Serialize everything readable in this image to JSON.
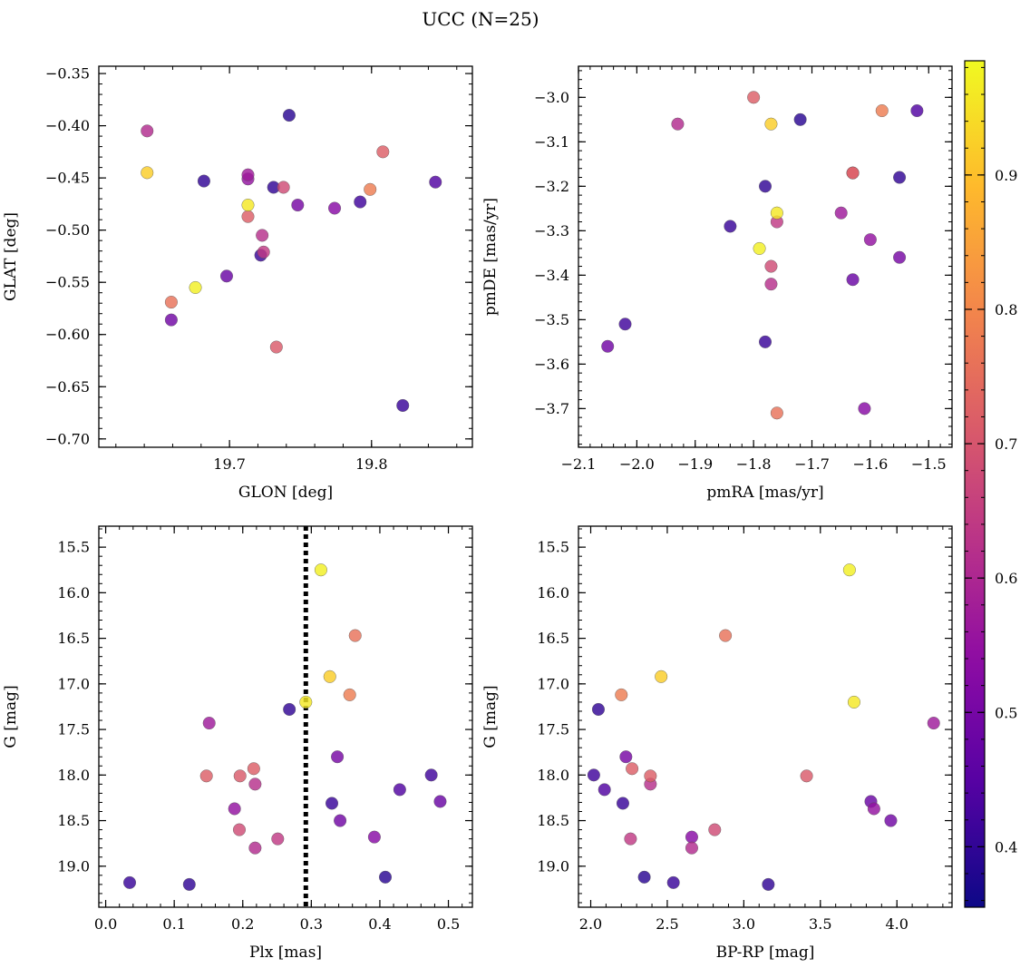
{
  "chart_data": {
    "type": "scatter",
    "title": "UCC (N=25)",
    "colorbar": {
      "colormap": "plasma",
      "range": [
        0.355,
        0.985
      ],
      "ticks": [
        0.4,
        0.5,
        0.6,
        0.7,
        0.8,
        0.9
      ],
      "tick_labels": [
        "0.4",
        "0.5",
        "0.6",
        "0.7",
        "0.8",
        "0.9"
      ]
    },
    "vline": {
      "panel": 2,
      "x": 0.292,
      "style": "dotted"
    },
    "panels": [
      {
        "name": "glon-glat",
        "xlabel": "GLON [deg]",
        "ylabel": "GLAT [deg]",
        "xlim": [
          19.608,
          19.871
        ],
        "ylim": [
          -0.708,
          -0.343
        ],
        "x_ticks": [
          19.7,
          19.8
        ],
        "x_tick_labels": [
          "19.7",
          "19.8"
        ],
        "y_ticks": [
          -0.35,
          -0.4,
          -0.45,
          -0.5,
          -0.55,
          -0.6,
          -0.65,
          -0.7
        ],
        "y_tick_labels": [
          "−0.35",
          "−0.40",
          "−0.45",
          "−0.50",
          "−0.55",
          "−0.60",
          "−0.65",
          "−0.70"
        ],
        "inverted_y": false
      },
      {
        "name": "pm",
        "xlabel": "pmRA [mas/yr]",
        "ylabel": "pmDE [mas/yr]",
        "xlim": [
          -2.1,
          -1.46
        ],
        "ylim": [
          -3.787,
          -2.93
        ],
        "x_ticks": [
          -2.1,
          -2.0,
          -1.9,
          -1.8,
          -1.7,
          -1.6,
          -1.5
        ],
        "x_tick_labels": [
          "−2.1",
          "−2.0",
          "−1.9",
          "−1.8",
          "−1.7",
          "−1.6",
          "−1.5"
        ],
        "y_ticks": [
          -3.0,
          -3.1,
          -3.2,
          -3.3,
          -3.4,
          -3.5,
          -3.6,
          -3.7
        ],
        "y_tick_labels": [
          "−3.0",
          "−3.1",
          "−3.2",
          "−3.3",
          "−3.4",
          "−3.5",
          "−3.6",
          "−3.7"
        ],
        "inverted_y": false
      },
      {
        "name": "plx-g",
        "xlabel": "Plx [mas]",
        "ylabel": "G [mag]",
        "xlim": [
          -0.01,
          0.535
        ],
        "ylim": [
          19.45,
          15.27
        ],
        "x_ticks": [
          0.0,
          0.1,
          0.2,
          0.3,
          0.4,
          0.5
        ],
        "x_tick_labels": [
          "0.0",
          "0.1",
          "0.2",
          "0.3",
          "0.4",
          "0.5"
        ],
        "y_ticks": [
          15.5,
          16.0,
          16.5,
          17.0,
          17.5,
          18.0,
          18.5,
          19.0
        ],
        "y_tick_labels": [
          "15.5",
          "16.0",
          "16.5",
          "17.0",
          "17.5",
          "18.0",
          "18.5",
          "19.0"
        ],
        "inverted_y": true
      },
      {
        "name": "color-mag",
        "xlabel": "BP-RP [mag]",
        "ylabel": "G [mag]",
        "xlim": [
          1.92,
          4.36
        ],
        "ylim": [
          19.45,
          15.27
        ],
        "x_ticks": [
          2.0,
          2.5,
          3.0,
          3.5,
          4.0
        ],
        "x_tick_labels": [
          "2.0",
          "2.5",
          "3.0",
          "3.5",
          "4.0"
        ],
        "y_ticks": [
          15.5,
          16.0,
          16.5,
          17.0,
          17.5,
          18.0,
          18.5,
          19.0
        ],
        "y_tick_labels": [
          "15.5",
          "16.0",
          "16.5",
          "17.0",
          "17.5",
          "18.0",
          "18.5",
          "19.0"
        ],
        "inverted_y": true
      }
    ],
    "stars": [
      {
        "glon": 19.742,
        "glat": -0.39,
        "pmra": -1.72,
        "pmde": -3.05,
        "plx": 0.408,
        "g": 19.12,
        "bprp": 2.35,
        "p": 0.39
      },
      {
        "glon": 19.808,
        "glat": -0.425,
        "pmra": -1.8,
        "pmde": -3.0,
        "plx": 0.216,
        "g": 17.93,
        "bprp": 2.27,
        "p": 0.72
      },
      {
        "glon": 19.642,
        "glat": -0.405,
        "pmra": -1.93,
        "pmde": -3.06,
        "plx": 0.218,
        "g": 18.8,
        "bprp": 2.66,
        "p": 0.61
      },
      {
        "glon": 19.642,
        "glat": -0.445,
        "pmra": -1.77,
        "pmde": -3.06,
        "plx": 0.327,
        "g": 16.92,
        "bprp": 2.46,
        "p": 0.92
      },
      {
        "glon": 19.682,
        "glat": -0.453,
        "pmra": -1.78,
        "pmde": -3.2,
        "plx": 0.122,
        "g": 19.2,
        "bprp": 3.16,
        "p": 0.4
      },
      {
        "glon": 19.713,
        "glat": -0.447,
        "pmra": -1.65,
        "pmde": -3.26,
        "plx": 0.151,
        "g": 17.43,
        "bprp": 4.24,
        "p": 0.57
      },
      {
        "glon": 19.713,
        "glat": -0.451,
        "pmra": -1.6,
        "pmde": -3.32,
        "plx": 0.188,
        "g": 18.37,
        "bprp": 3.85,
        "p": 0.55
      },
      {
        "glon": 19.713,
        "glat": -0.476,
        "pmra": -1.76,
        "pmde": -3.26,
        "plx": 0.292,
        "g": 17.2,
        "bprp": 3.72,
        "p": 0.96
      },
      {
        "glon": 19.713,
        "glat": -0.487,
        "pmra": -1.63,
        "pmde": -3.17,
        "plx": 0.147,
        "g": 18.01,
        "bprp": 2.39,
        "p": 0.72
      },
      {
        "glon": 19.731,
        "glat": -0.459,
        "pmra": -1.55,
        "pmde": -3.18,
        "plx": 0.268,
        "g": 17.28,
        "bprp": 2.05,
        "p": 0.4
      },
      {
        "glon": 19.738,
        "glat": -0.459,
        "pmra": -1.77,
        "pmde": -3.38,
        "plx": 0.195,
        "g": 18.6,
        "bprp": 2.81,
        "p": 0.68
      },
      {
        "glon": 19.748,
        "glat": -0.476,
        "pmra": -1.55,
        "pmde": -3.36,
        "plx": 0.338,
        "g": 17.8,
        "bprp": 2.23,
        "p": 0.5
      },
      {
        "glon": 19.723,
        "glat": -0.505,
        "pmra": -1.77,
        "pmde": -3.42,
        "plx": 0.218,
        "g": 18.1,
        "bprp": 2.39,
        "p": 0.62
      },
      {
        "glon": 19.724,
        "glat": -0.521,
        "pmra": -1.76,
        "pmde": -3.28,
        "plx": 0.251,
        "g": 18.7,
        "bprp": 2.26,
        "p": 0.64
      },
      {
        "glon": 19.722,
        "glat": -0.524,
        "pmra": -1.84,
        "pmde": -3.29,
        "plx": 0.035,
        "g": 19.18,
        "bprp": 2.54,
        "p": 0.41
      },
      {
        "glon": 19.774,
        "glat": -0.479,
        "pmra": -1.61,
        "pmde": -3.7,
        "plx": 0.392,
        "g": 18.68,
        "bprp": 2.66,
        "p": 0.53
      },
      {
        "glon": 19.792,
        "glat": -0.473,
        "pmra": -2.02,
        "pmde": -3.51,
        "plx": 0.475,
        "g": 18.0,
        "bprp": 2.02,
        "p": 0.42
      },
      {
        "glon": 19.799,
        "glat": -0.461,
        "pmra": -1.58,
        "pmde": -3.03,
        "plx": 0.356,
        "g": 17.12,
        "bprp": 2.2,
        "p": 0.78
      },
      {
        "glon": 19.845,
        "glat": -0.454,
        "pmra": -1.52,
        "pmde": -3.03,
        "plx": 0.429,
        "g": 18.16,
        "bprp": 2.09,
        "p": 0.44
      },
      {
        "glon": 19.698,
        "glat": -0.544,
        "pmra": -1.63,
        "pmde": -3.41,
        "plx": 0.488,
        "g": 18.29,
        "bprp": 3.83,
        "p": 0.48
      },
      {
        "glon": 19.676,
        "glat": -0.555,
        "pmra": -1.79,
        "pmde": -3.34,
        "plx": 0.314,
        "g": 15.75,
        "bprp": 3.69,
        "p": 0.97
      },
      {
        "glon": 19.659,
        "glat": -0.569,
        "pmra": -1.76,
        "pmde": -3.71,
        "plx": 0.364,
        "g": 16.47,
        "bprp": 2.88,
        "p": 0.76
      },
      {
        "glon": 19.659,
        "glat": -0.586,
        "pmra": -2.05,
        "pmde": -3.56,
        "plx": 0.342,
        "g": 18.5,
        "bprp": 3.96,
        "p": 0.49
      },
      {
        "glon": 19.733,
        "glat": -0.612,
        "pmra": -1.63,
        "pmde": -3.17,
        "plx": 0.196,
        "g": 18.01,
        "bprp": 3.41,
        "p": 0.71
      },
      {
        "glon": 19.822,
        "glat": -0.668,
        "pmra": -1.78,
        "pmde": -3.55,
        "plx": 0.33,
        "g": 18.31,
        "bprp": 2.21,
        "p": 0.41
      }
    ]
  }
}
